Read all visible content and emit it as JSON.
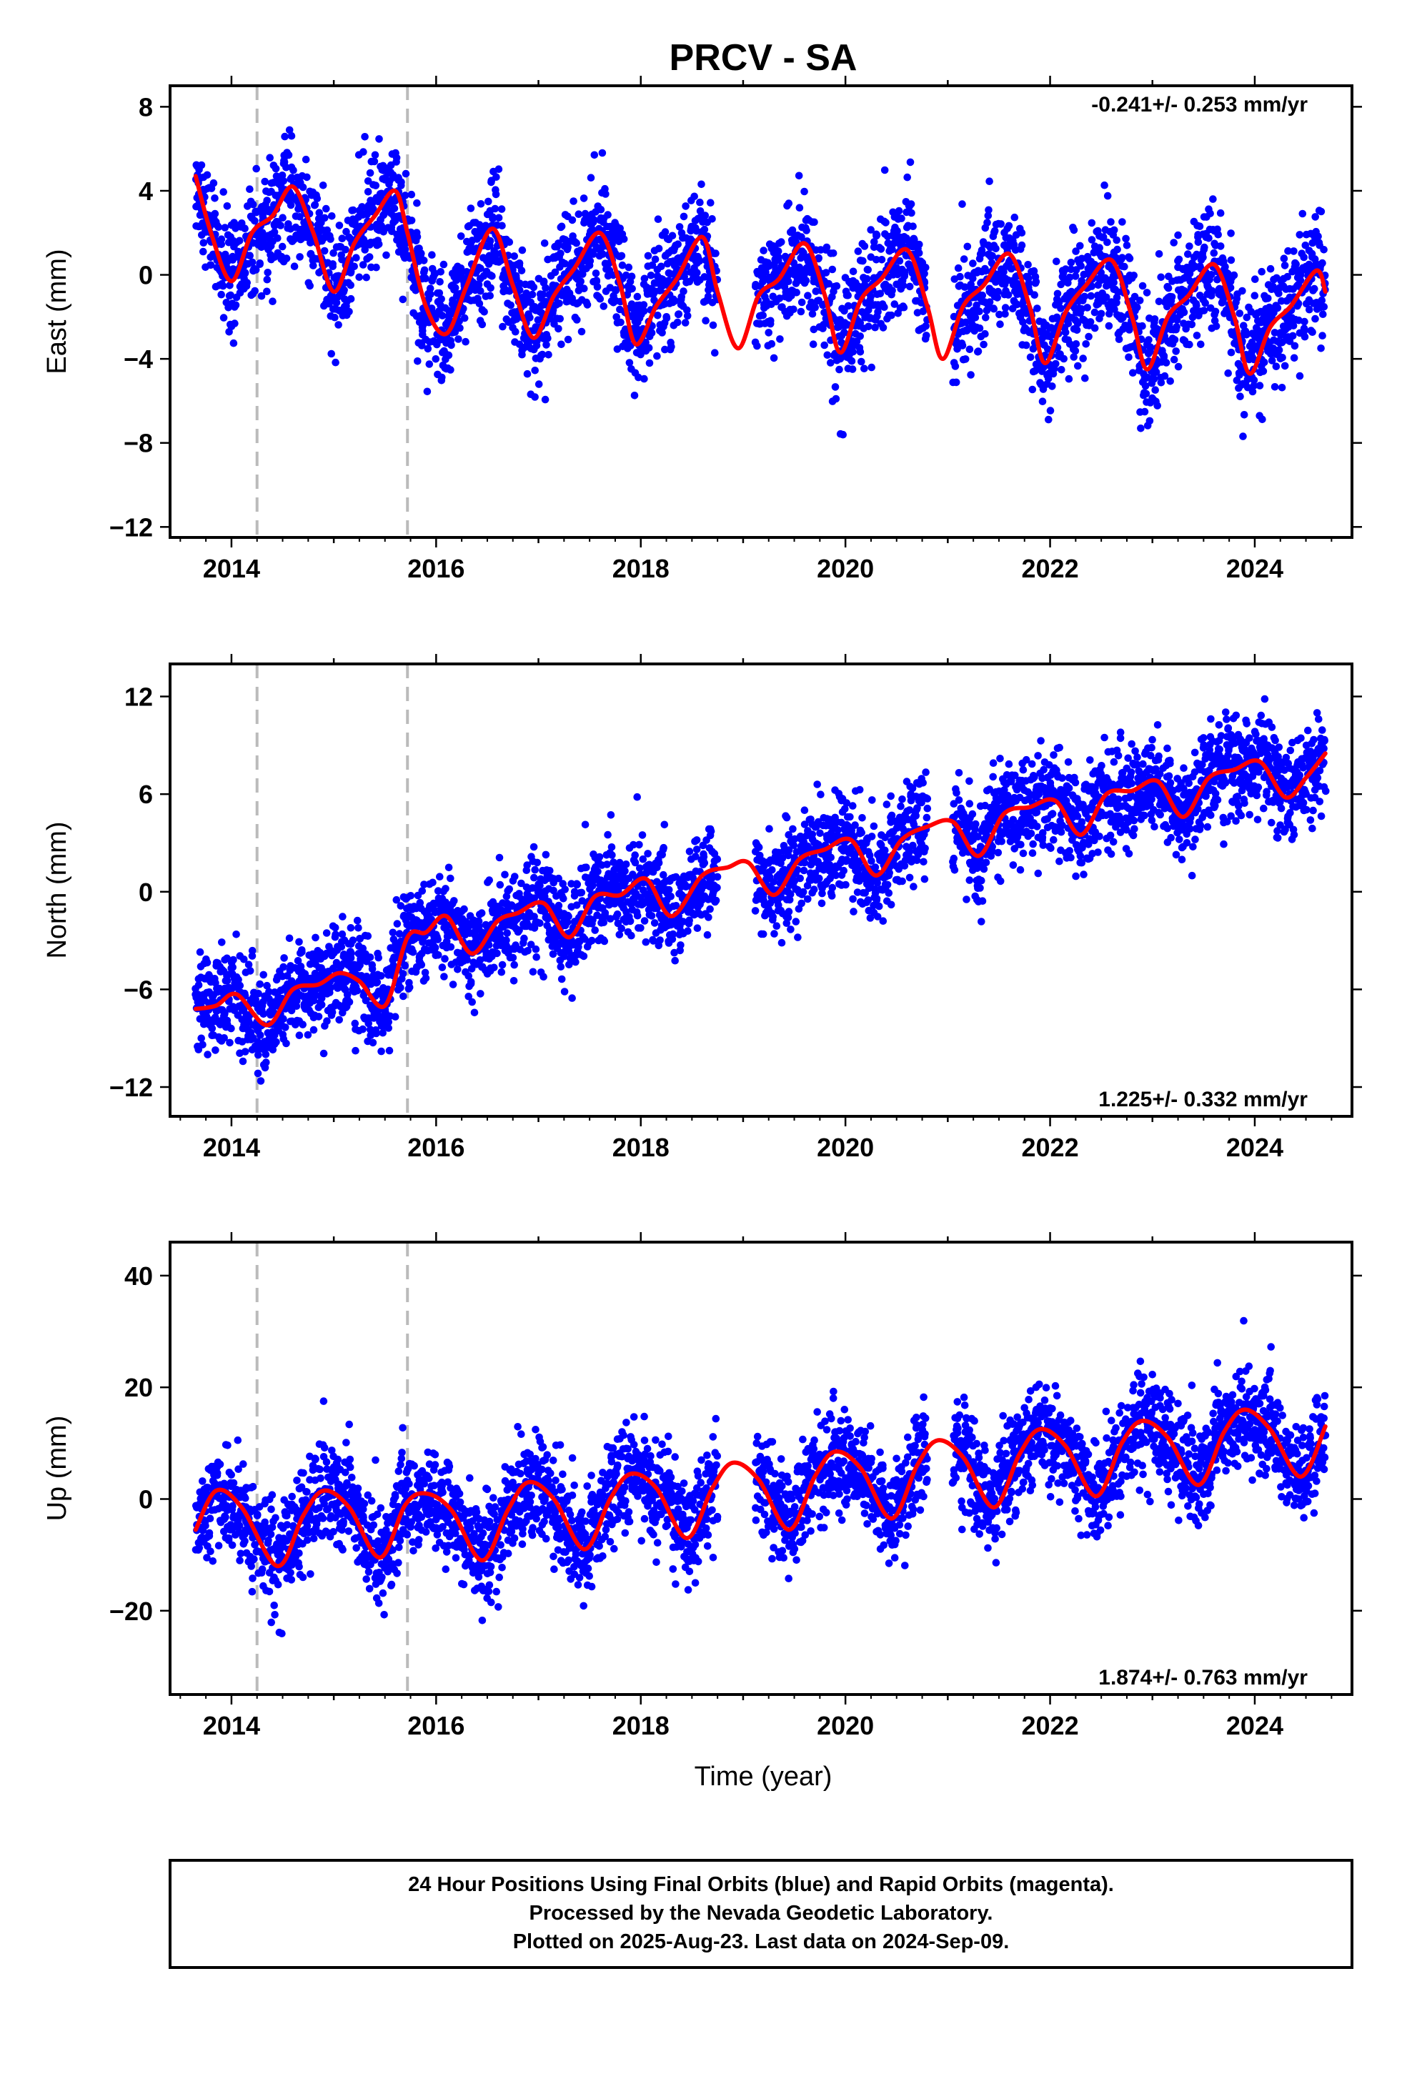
{
  "title": "PRCV - SA",
  "x_axis_label": "Time (year)",
  "footer": {
    "line1": "24 Hour Positions Using Final Orbits (blue) and Rapid Orbits (magenta).",
    "line2": "Processed by the Nevada Geodetic Laboratory.",
    "line3": "Plotted on 2025-Aug-23. Last data on 2024-Sep-09."
  },
  "colors": {
    "final_orbits": "#0000ff",
    "model_fit": "#ff0000",
    "event_lines": "#bbbbbb",
    "frame": "#000000"
  },
  "chart_data": [
    {
      "type": "scatter",
      "component": "East",
      "ylabel": "East (mm)",
      "xlim": [
        2013.4,
        2024.95
      ],
      "ylim": [
        -12.5,
        9
      ],
      "xticks": [
        2014,
        2016,
        2018,
        2020,
        2022,
        2024
      ],
      "yticks": [
        8,
        4,
        0,
        -4,
        -8,
        -12
      ],
      "event_lines_x": [
        2014.25,
        2015.72
      ],
      "rate_label": "-0.241+/- 0.253 mm/yr",
      "rate_position": "top-right",
      "data_span": [
        2013.65,
        2024.69
      ],
      "gaps": [
        [
          2018.75,
          2019.12
        ],
        [
          2020.8,
          2021.05
        ]
      ],
      "scatter_sd": 1.4,
      "series": [
        {
          "name": "Final Orbits",
          "x": [
            2013.65,
            2013.8,
            2014.0,
            2014.2,
            2014.4,
            2014.6,
            2014.8,
            2015.0,
            2015.2,
            2015.4,
            2015.6,
            2015.72,
            2015.9,
            2016.1,
            2016.3,
            2016.55,
            2016.75,
            2016.95,
            2017.15,
            2017.35,
            2017.6,
            2017.8,
            2017.95,
            2018.15,
            2018.35,
            2018.6,
            2018.75,
            2018.95,
            2019.15,
            2019.35,
            2019.6,
            2019.8,
            2019.95,
            2020.15,
            2020.35,
            2020.6,
            2020.8,
            2020.95,
            2021.15,
            2021.35,
            2021.6,
            2021.8,
            2021.95,
            2022.15,
            2022.35,
            2022.6,
            2022.8,
            2022.95,
            2023.15,
            2023.35,
            2023.6,
            2023.8,
            2023.95,
            2024.15,
            2024.35,
            2024.6,
            2024.69
          ],
          "y": [
            4.7,
            2.0,
            -0.3,
            2.0,
            2.8,
            4.2,
            2.0,
            -0.8,
            1.5,
            2.8,
            4.0,
            2.0,
            -1.5,
            -2.8,
            -0.5,
            2.2,
            -0.5,
            -3.0,
            -1.0,
            0.3,
            2.0,
            -0.5,
            -3.3,
            -1.5,
            -0.2,
            1.8,
            -0.8,
            -3.5,
            -1.0,
            -0.2,
            1.5,
            -1.0,
            -3.7,
            -1.2,
            -0.2,
            1.2,
            -1.5,
            -4.0,
            -1.5,
            -0.5,
            1.0,
            -1.5,
            -4.2,
            -1.8,
            -0.5,
            0.7,
            -2.0,
            -4.5,
            -2.0,
            -1.0,
            0.5,
            -2.0,
            -4.7,
            -2.5,
            -1.5,
            0.2,
            -0.8
          ]
        }
      ]
    },
    {
      "type": "scatter",
      "component": "North",
      "ylabel": "North (mm)",
      "xlim": [
        2013.4,
        2024.95
      ],
      "ylim": [
        -13.8,
        14
      ],
      "xticks": [
        2014,
        2016,
        2018,
        2020,
        2022,
        2024
      ],
      "yticks": [
        12,
        6,
        0,
        -6,
        -12
      ],
      "event_lines_x": [
        2014.25,
        2015.72
      ],
      "rate_label": "1.225+/- 0.332 mm/yr",
      "rate_position": "bottom-right",
      "data_span": [
        2013.65,
        2024.69
      ],
      "gaps": [
        [
          2018.75,
          2019.12
        ],
        [
          2020.8,
          2021.05
        ]
      ],
      "scatter_sd": 1.5,
      "series": [
        {
          "name": "Final Orbits",
          "x": [
            2013.65,
            2013.85,
            2014.05,
            2014.35,
            2014.6,
            2014.85,
            2015.05,
            2015.25,
            2015.5,
            2015.72,
            2015.9,
            2016.1,
            2016.35,
            2016.6,
            2016.8,
            2017.05,
            2017.3,
            2017.55,
            2017.8,
            2018.05,
            2018.3,
            2018.6,
            2018.85,
            2019.05,
            2019.3,
            2019.55,
            2019.8,
            2020.05,
            2020.3,
            2020.55,
            2020.8,
            2021.05,
            2021.3,
            2021.55,
            2021.8,
            2022.05,
            2022.3,
            2022.55,
            2022.8,
            2023.05,
            2023.3,
            2023.55,
            2023.8,
            2024.05,
            2024.3,
            2024.5,
            2024.69
          ],
          "y": [
            -7.2,
            -7.0,
            -6.3,
            -8.2,
            -6.0,
            -5.7,
            -5.0,
            -5.5,
            -7.0,
            -2.8,
            -2.5,
            -1.5,
            -3.8,
            -1.8,
            -1.3,
            -0.7,
            -2.8,
            -0.3,
            -0.2,
            0.8,
            -1.5,
            1.0,
            1.5,
            1.8,
            -0.2,
            2.0,
            2.6,
            3.2,
            1.0,
            3.2,
            4.0,
            4.3,
            2.2,
            4.8,
            5.2,
            5.6,
            3.5,
            6.0,
            6.2,
            6.8,
            4.6,
            7.0,
            7.5,
            8.0,
            5.8,
            7.0,
            8.5
          ]
        }
      ]
    },
    {
      "type": "scatter",
      "component": "Up",
      "ylabel": "Up (mm)",
      "xlim": [
        2013.4,
        2024.95
      ],
      "ylim": [
        -35,
        46
      ],
      "xticks": [
        2014,
        2016,
        2018,
        2020,
        2022,
        2024
      ],
      "yticks": [
        40,
        20,
        0,
        -20
      ],
      "event_lines_x": [
        2014.25,
        2015.72
      ],
      "rate_label": "1.874+/- 0.763 mm/yr",
      "rate_position": "bottom-right",
      "data_span": [
        2013.65,
        2024.69
      ],
      "gaps": [
        [
          2018.75,
          2019.12
        ],
        [
          2020.8,
          2021.05
        ]
      ],
      "scatter_sd": 4.5,
      "series": [
        {
          "name": "Final Orbits",
          "x": [
            2013.65,
            2013.85,
            2014.1,
            2014.45,
            2014.7,
            2014.9,
            2015.15,
            2015.45,
            2015.7,
            2015.9,
            2016.15,
            2016.45,
            2016.7,
            2016.9,
            2017.15,
            2017.45,
            2017.7,
            2017.9,
            2018.15,
            2018.45,
            2018.7,
            2018.9,
            2019.15,
            2019.45,
            2019.7,
            2019.9,
            2020.15,
            2020.45,
            2020.7,
            2020.9,
            2021.15,
            2021.45,
            2021.7,
            2021.9,
            2022.15,
            2022.45,
            2022.7,
            2022.9,
            2023.15,
            2023.45,
            2023.7,
            2023.9,
            2024.15,
            2024.45,
            2024.69
          ],
          "y": [
            -5.5,
            1.5,
            -1.5,
            -12.0,
            -3.0,
            1.5,
            -1.5,
            -10.5,
            -1.0,
            1.0,
            -2.0,
            -11.0,
            -2.0,
            3.0,
            0.0,
            -9.0,
            0.0,
            4.5,
            2.0,
            -7.0,
            2.0,
            6.5,
            3.5,
            -5.5,
            4.0,
            8.5,
            5.5,
            -3.5,
            6.0,
            10.5,
            7.5,
            -1.5,
            8.0,
            12.5,
            9.5,
            0.5,
            10.0,
            14.0,
            11.0,
            2.5,
            12.0,
            16.0,
            12.5,
            4.0,
            13.0
          ]
        }
      ]
    }
  ]
}
